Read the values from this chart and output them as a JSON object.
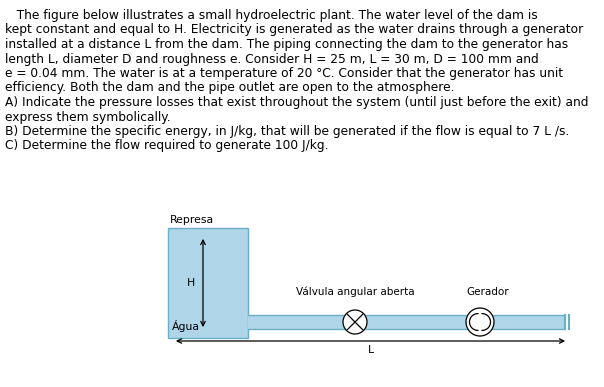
{
  "label_represa": "Represa",
  "label_agua": "Água",
  "label_valvula": "Válvula angular aberta",
  "label_gerador": "Gerador",
  "label_L": "L",
  "label_H": "H",
  "dam_color": "#aed6e8",
  "pipe_color": "#aed6e8",
  "pipe_border_color": "#6aafc8",
  "bg_color": "#ffffff",
  "text_color": "#000000",
  "font_size_text": 8.8,
  "font_size_labels": 8.2,
  "font_size_diagram": 7.8
}
